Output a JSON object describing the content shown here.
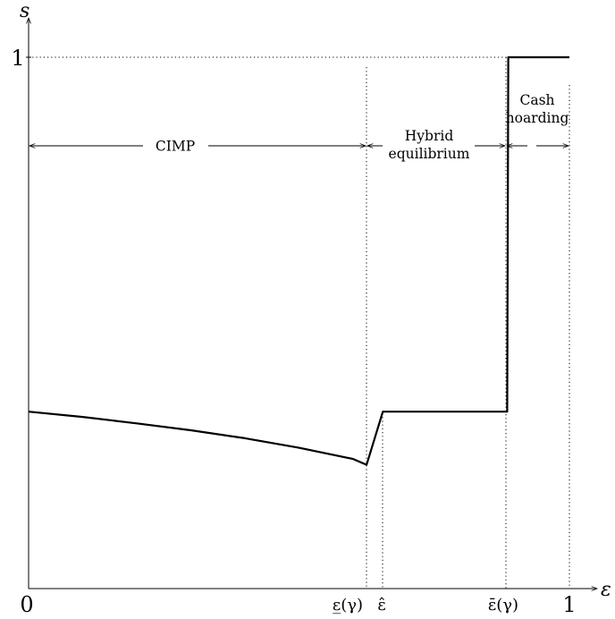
{
  "axes": {
    "y_label": "s",
    "x_label": "ε",
    "origin_label": "0",
    "y_one_label": "1",
    "x_one_label": "1"
  },
  "x_ticks": {
    "eps_underline": "ε̲(γ)",
    "eps_hat": "ε̂",
    "eps_bar": "ε̄(γ)"
  },
  "regions": {
    "cimp": "CIMP",
    "hybrid_line1": "Hybrid",
    "hybrid_line2": "equilibrium",
    "cash_line1": "Cash",
    "cash_line2": "hoarding"
  },
  "chart_data": {
    "type": "line",
    "xlim": [
      0,
      1
    ],
    "ylim": [
      0,
      1
    ],
    "critical_x": {
      "eps_underline": 0.625,
      "eps_hat": 0.655,
      "eps_bar": 0.885
    },
    "series": [
      {
        "x": [
          0,
          0.1,
          0.2,
          0.3,
          0.4,
          0.5,
          0.6,
          0.625,
          0.655,
          0.885,
          0.887,
          1.0
        ],
        "y": [
          0.333,
          0.323,
          0.311,
          0.298,
          0.283,
          0.265,
          0.244,
          0.233,
          0.333,
          0.333,
          1.0,
          1.0
        ]
      }
    ],
    "grid": false
  }
}
